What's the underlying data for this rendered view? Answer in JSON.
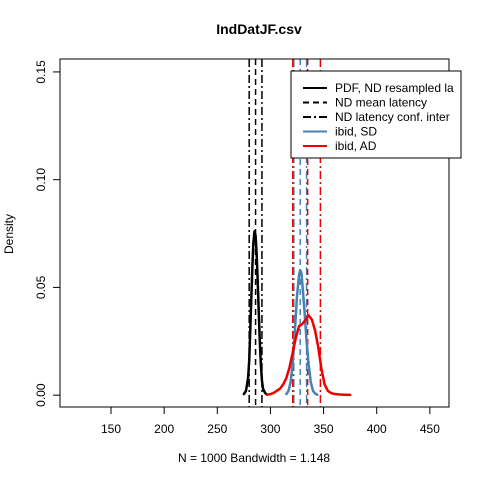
{
  "chart_data": {
    "type": "line",
    "title": "IndDatJF.csv",
    "xlabel": "N = 1000   Bandwidth = 1.148",
    "ylabel": "Density",
    "xlim": [
      102,
      468
    ],
    "ylim": [
      -0.0055,
      0.156
    ],
    "xticks": [
      150,
      200,
      250,
      300,
      350,
      400,
      450
    ],
    "xtick_labels": [
      "150",
      "200",
      "250",
      "300",
      "350",
      "400",
      "450"
    ],
    "yticks": [
      0.0,
      0.05,
      0.1,
      0.15
    ],
    "ytick_labels": [
      "0.00",
      "0.05",
      "0.10",
      "0.15"
    ],
    "grid": false,
    "legend": {
      "position": "top-right",
      "entries": [
        {
          "label": "PDF, ND resampled la",
          "color": "#000000",
          "style": "solid"
        },
        {
          "label": "ND mean latency",
          "color": "#000000",
          "style": "dashed"
        },
        {
          "label": "ND latency conf. inter",
          "color": "#000000",
          "style": "dashdot"
        },
        {
          "label": "ibid, SD",
          "color": "#4682b4",
          "style": "solid"
        },
        {
          "label": "ibid, AD",
          "color": "#ee0000",
          "style": "solid"
        }
      ]
    },
    "series": [
      {
        "color": "#000000",
        "style": "solid",
        "x": [
          275,
          277,
          279,
          280,
          281,
          282,
          283,
          284,
          285,
          286,
          287,
          288,
          289,
          290,
          291,
          292,
          293,
          295,
          297
        ],
        "y": [
          0.0005,
          0.002,
          0.008,
          0.016,
          0.029,
          0.045,
          0.06,
          0.071,
          0.076,
          0.074,
          0.066,
          0.053,
          0.038,
          0.025,
          0.014,
          0.007,
          0.003,
          0.001,
          0.0002
        ]
      },
      {
        "color": "#4682b4",
        "style": "solid",
        "x": [
          315,
          317,
          319,
          321,
          323,
          325,
          327,
          328,
          329,
          330,
          332,
          334,
          336,
          338,
          340,
          342,
          344
        ],
        "y": [
          0.0005,
          0.002,
          0.006,
          0.015,
          0.03,
          0.046,
          0.056,
          0.058,
          0.057,
          0.052,
          0.039,
          0.025,
          0.014,
          0.006,
          0.002,
          0.0008,
          0.0002
        ]
      },
      {
        "color": "#ee0000",
        "style": "solid",
        "x": [
          297,
          300,
          303,
          306,
          309,
          312,
          315,
          318,
          321,
          324,
          327,
          330,
          333,
          336,
          339,
          342,
          345,
          348,
          351,
          354,
          357,
          360,
          365,
          370,
          375
        ],
        "y": [
          0.0002,
          0.0005,
          0.001,
          0.002,
          0.003,
          0.005,
          0.008,
          0.013,
          0.02,
          0.027,
          0.032,
          0.033,
          0.035,
          0.037,
          0.035,
          0.03,
          0.022,
          0.012,
          0.005,
          0.002,
          0.001,
          0.0006,
          0.0003,
          0.0002,
          0.0001
        ]
      }
    ],
    "vlines": [
      {
        "x": 286,
        "color": "#000000",
        "style": "dashed"
      },
      {
        "x": 280,
        "color": "#000000",
        "style": "dashdot"
      },
      {
        "x": 292,
        "color": "#000000",
        "style": "dashdot"
      },
      {
        "x": 328,
        "color": "#4682b4",
        "style": "dashed"
      },
      {
        "x": 322,
        "color": "#4682b4",
        "style": "dashdot"
      },
      {
        "x": 334,
        "color": "#4682b4",
        "style": "dashdot"
      },
      {
        "x": 335,
        "color": "#ee0000",
        "style": "dashed"
      },
      {
        "x": 321,
        "color": "#ee0000",
        "style": "dashdot"
      },
      {
        "x": 347,
        "color": "#ee0000",
        "style": "dashdot"
      }
    ]
  }
}
